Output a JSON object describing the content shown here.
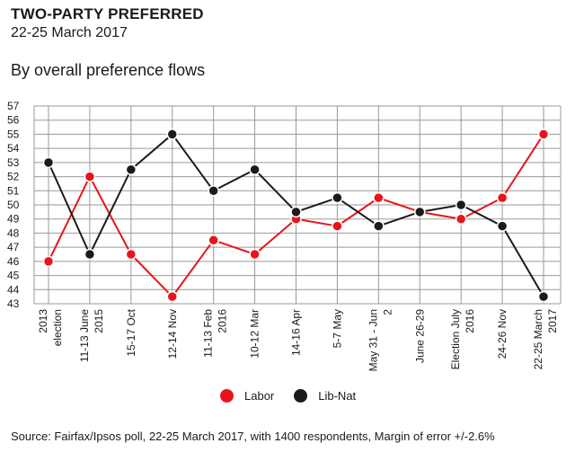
{
  "header": {
    "title": "TWO-PARTY PREFERRED",
    "date": "22-25 March 2017",
    "subtitle": "By overall preference flows"
  },
  "footer": {
    "source": "Source: Fairfax/Ipsos poll, 22-25 March 2017, with 1400 respondents, Margin of error +/-2.6%"
  },
  "legend": {
    "labor_label": "Labor",
    "libnat_label": "Lib-Nat"
  },
  "colors": {
    "labor": "#e8141b",
    "libnat": "#1b1b1b",
    "grid": "#9a9a9a"
  },
  "chart_data": {
    "type": "line",
    "title": "TWO-PARTY PREFERRED",
    "subtitle": "By overall preference flows",
    "xlabel": "",
    "ylabel": "",
    "ylim": [
      43,
      57
    ],
    "yticks": [
      43,
      44,
      45,
      46,
      47,
      48,
      49,
      50,
      51,
      52,
      53,
      54,
      55,
      56,
      57
    ],
    "grid": true,
    "legend_position": "bottom",
    "categories": [
      [
        "2013",
        "election"
      ],
      [
        "11-13 June",
        "2015"
      ],
      [
        "15-17 Oct"
      ],
      [
        "12-14 Nov"
      ],
      [
        "11-13 Feb",
        "2016"
      ],
      [
        "10-12 Mar"
      ],
      [
        "14-16 Apr"
      ],
      [
        "5-7 May"
      ],
      [
        "May 31 - Jun",
        "2"
      ],
      [
        "June 26-29"
      ],
      [
        "Election July",
        "2016"
      ],
      [
        "24-26 Nov"
      ],
      [
        "22-25 March",
        "2017"
      ]
    ],
    "series": [
      {
        "name": "Labor",
        "color": "#e8141b",
        "values": [
          46,
          52,
          46.5,
          43.5,
          47.5,
          46.5,
          49,
          48.5,
          50.5,
          49.5,
          49,
          50.5,
          55
        ]
      },
      {
        "name": "Lib-Nat",
        "color": "#1b1b1b",
        "values": [
          53,
          46.5,
          52.5,
          55,
          51,
          52.5,
          49.5,
          50.5,
          48.5,
          49.5,
          50,
          48.5,
          43.5
        ]
      }
    ]
  }
}
